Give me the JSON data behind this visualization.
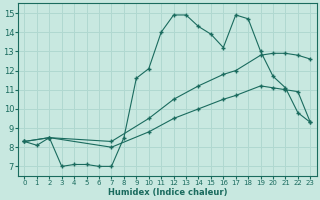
{
  "xlabel": "Humidex (Indice chaleur)",
  "xlim": [
    -0.5,
    23.5
  ],
  "ylim": [
    6.5,
    15.5
  ],
  "yticks": [
    7,
    8,
    9,
    10,
    11,
    12,
    13,
    14,
    15
  ],
  "xticks": [
    0,
    1,
    2,
    3,
    4,
    5,
    6,
    7,
    8,
    9,
    10,
    11,
    12,
    13,
    14,
    15,
    16,
    17,
    18,
    19,
    20,
    21,
    22,
    23
  ],
  "bg_color": "#c8e8e0",
  "line_color": "#1a6b5e",
  "grid_color": "#b0d8d0",
  "line1_x": [
    0,
    1,
    2,
    3,
    4,
    5,
    6,
    7,
    8,
    9,
    10,
    11,
    12,
    13,
    14,
    15,
    16,
    17,
    18,
    19,
    20,
    21,
    22,
    23
  ],
  "line1_y": [
    8.3,
    8.1,
    8.5,
    7.0,
    7.1,
    7.1,
    7.0,
    7.0,
    8.5,
    11.6,
    12.1,
    14.0,
    14.9,
    14.9,
    14.3,
    13.9,
    13.2,
    14.9,
    14.7,
    13.0,
    11.7,
    11.1,
    9.8,
    9.3
  ],
  "line2_x": [
    0,
    2,
    7,
    10,
    12,
    14,
    16,
    17,
    19,
    20,
    21,
    22,
    23
  ],
  "line2_y": [
    8.3,
    8.5,
    8.3,
    9.5,
    10.5,
    11.2,
    11.8,
    12.0,
    12.8,
    12.9,
    12.9,
    12.8,
    12.6
  ],
  "line3_x": [
    0,
    2,
    7,
    10,
    12,
    14,
    16,
    17,
    19,
    20,
    21,
    22,
    23
  ],
  "line3_y": [
    8.3,
    8.5,
    8.0,
    8.8,
    9.5,
    10.0,
    10.5,
    10.7,
    11.2,
    11.1,
    11.0,
    10.9,
    9.3
  ]
}
